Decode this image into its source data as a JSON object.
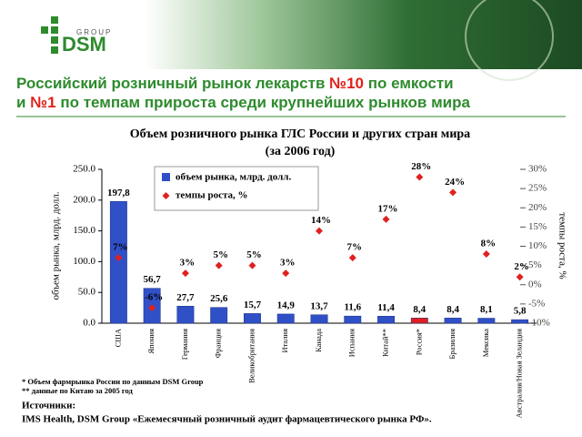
{
  "header": {
    "logo_name": "DSM",
    "logo_sub": "GROUP"
  },
  "slide_title": {
    "line1": [
      "Российский розничный рынок лекарств ",
      "№10",
      " по емкости"
    ],
    "line2": [
      "и ",
      "№1",
      " по темпам прироста среди крупнейших рынков мира"
    ]
  },
  "chart_data": {
    "type": "bar",
    "title": "Объем розничного рынка ГЛС России и других стран мира",
    "subtitle": "(за 2006 год)",
    "y_label": "объем рынка, млрд. долл.",
    "y2_label": "темпы роста, %",
    "categories": [
      "США",
      "Япония",
      "Германия",
      "Франция",
      "Великобритания",
      "Италия",
      "Канада",
      "Испания",
      "Китай**",
      "Россия*",
      "Бразилия",
      "Мексика",
      "Австралия/Новая Зеландия"
    ],
    "series": [
      {
        "name": "объем рынка, млрд. долл.",
        "color": "#3050c8",
        "bar_colors": [
          "#3050c8",
          "#3050c8",
          "#3050c8",
          "#3050c8",
          "#3050c8",
          "#3050c8",
          "#3050c8",
          "#3050c8",
          "#3050c8",
          "#e02020",
          "#3050c8",
          "#3050c8",
          "#3050c8"
        ],
        "values": [
          197.8,
          56.7,
          27.7,
          25.6,
          15.7,
          14.9,
          13.7,
          11.6,
          11.4,
          8.4,
          8.4,
          8.1,
          5.8
        ],
        "value_labels": [
          "197,8",
          "56,7",
          "27,7",
          "25,6",
          "15,7",
          "14,9",
          "13,7",
          "11,6",
          "11,4",
          "8,4",
          "8,4",
          "8,1",
          "5,8"
        ]
      },
      {
        "name": "темпы роста, %",
        "color": "#e02020",
        "axis": "y2",
        "values": [
          7,
          -6,
          3,
          5,
          5,
          3,
          14,
          7,
          17,
          28,
          24,
          8,
          2
        ],
        "value_labels": [
          "7%",
          "-6%",
          "3%",
          "5%",
          "5%",
          "3%",
          "14%",
          "7%",
          "17%",
          "28%",
          "24%",
          "8%",
          "2%"
        ]
      }
    ],
    "ylim": [
      0,
      250
    ],
    "yticks": [
      {
        "value": 0,
        "label": "0.0"
      },
      {
        "value": 50,
        "label": "50.0"
      },
      {
        "value": 100,
        "label": "100.0"
      },
      {
        "value": 150,
        "label": "150.0"
      },
      {
        "value": 200,
        "label": "200.0"
      },
      {
        "value": 250,
        "label": "250.0"
      }
    ],
    "y2lim": [
      -10,
      30
    ],
    "y2ticks": [
      {
        "value": -10,
        "label": "-10%"
      },
      {
        "value": -5,
        "label": "-5%"
      },
      {
        "value": 0,
        "label": "0%"
      },
      {
        "value": 5,
        "label": "5%"
      },
      {
        "value": 10,
        "label": "10%"
      },
      {
        "value": 15,
        "label": "15%"
      },
      {
        "value": 20,
        "label": "20%"
      },
      {
        "value": 25,
        "label": "25%"
      },
      {
        "value": 30,
        "label": "30%"
      }
    ],
    "grid": false,
    "legend": "top-left"
  },
  "footnotes": [
    "* Объем фармрынка России по данным DSM Group",
    "** данные по Китаю за 2005 год"
  ],
  "sources": {
    "heading": "Источники:",
    "text": "IMS Health, DSM Group «Ежемесячный розничный аудит фармацевтического рынка РФ»."
  }
}
